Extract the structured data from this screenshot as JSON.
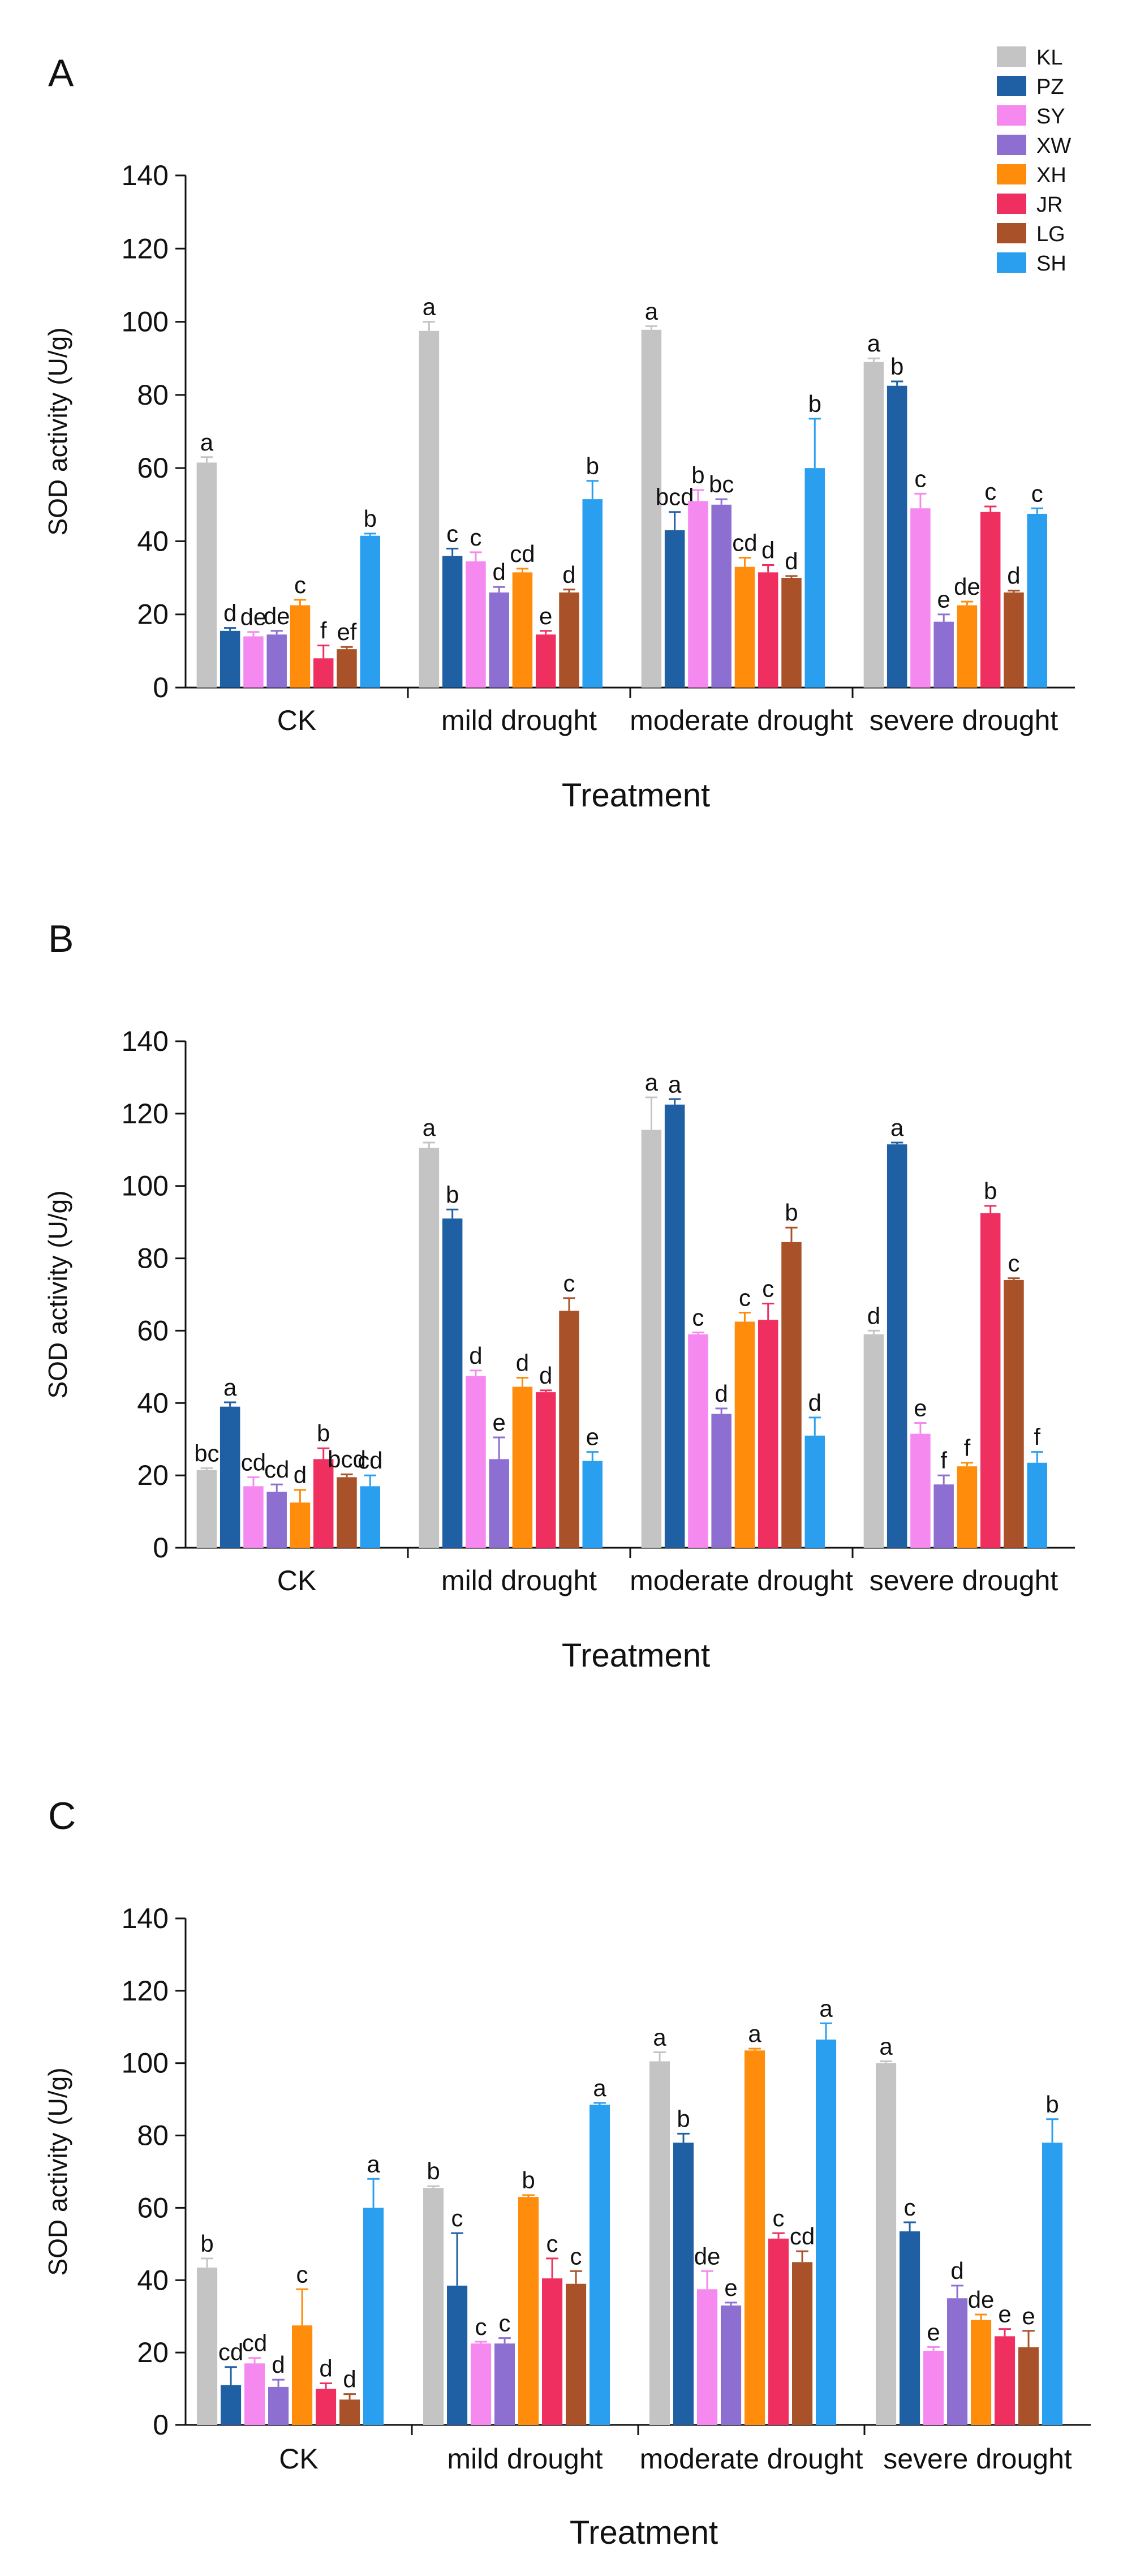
{
  "legend": [
    {
      "name": "KL",
      "color": "#c4c4c4"
    },
    {
      "name": "PZ",
      "color": "#1f5fa3"
    },
    {
      "name": "SY",
      "color": "#f589f0"
    },
    {
      "name": "XW",
      "color": "#8c6fd0"
    },
    {
      "name": "XH",
      "color": "#ff8c0a"
    },
    {
      "name": "JR",
      "color": "#ef2f60"
    },
    {
      "name": "LG",
      "color": "#a9522a"
    },
    {
      "name": "SH",
      "color": "#2a9ff0"
    }
  ],
  "chart_data": [
    {
      "panel": "A",
      "type": "bar",
      "xlabel": "Treatment",
      "ylabel": "SOD activity (U/g)",
      "ylim": [
        0,
        140
      ],
      "yticks": [
        0,
        20,
        40,
        60,
        80,
        100,
        120,
        140
      ],
      "categories": [
        "CK",
        "mild drought",
        "moderate drought",
        "severe drought"
      ],
      "series": [
        {
          "name": "KL",
          "values": [
            61.5,
            97.5,
            97.8,
            89
          ],
          "errors": [
            1.5,
            2.5,
            1.0,
            1.0
          ],
          "letters": [
            "a",
            "a",
            "a",
            "a"
          ]
        },
        {
          "name": "PZ",
          "values": [
            15.5,
            36,
            43,
            82.5
          ],
          "errors": [
            0.8,
            2.0,
            5.0,
            1.2
          ],
          "letters": [
            "d",
            "c",
            "bcd",
            "b"
          ]
        },
        {
          "name": "SY",
          "values": [
            14,
            34.5,
            51,
            49
          ],
          "errors": [
            1.2,
            2.5,
            3.0,
            4.0
          ],
          "letters": [
            "de",
            "c",
            "b",
            "c"
          ]
        },
        {
          "name": "XW",
          "values": [
            14.5,
            26,
            50,
            18
          ],
          "errors": [
            1.0,
            1.5,
            1.5,
            2.0
          ],
          "letters": [
            "de",
            "d",
            "bc",
            "e"
          ]
        },
        {
          "name": "XH",
          "values": [
            22.5,
            31.5,
            33,
            22.5
          ],
          "errors": [
            1.5,
            1.0,
            2.5,
            1.0
          ],
          "letters": [
            "c",
            "cd",
            "cd",
            "de"
          ]
        },
        {
          "name": "JR",
          "values": [
            8,
            14.5,
            31.5,
            48
          ],
          "errors": [
            3.5,
            1.0,
            2.0,
            1.5
          ],
          "letters": [
            "f",
            "e",
            "d",
            "c"
          ]
        },
        {
          "name": "LG",
          "values": [
            10.5,
            26,
            30,
            26
          ],
          "errors": [
            0.6,
            0.8,
            0.5,
            0.5
          ],
          "letters": [
            "ef",
            "d",
            "d",
            "d"
          ]
        },
        {
          "name": "SH",
          "values": [
            41.5,
            51.5,
            60,
            47.5
          ],
          "errors": [
            0.6,
            5.0,
            13.5,
            1.5
          ],
          "letters": [
            "b",
            "b",
            "b",
            "c"
          ]
        }
      ]
    },
    {
      "panel": "B",
      "type": "bar",
      "xlabel": "Treatment",
      "ylabel": "SOD activity (U/g)",
      "ylim": [
        0,
        140
      ],
      "yticks": [
        0,
        20,
        40,
        60,
        80,
        100,
        120,
        140
      ],
      "categories": [
        "CK",
        "mild drought",
        "moderate drought",
        "severe drought"
      ],
      "series": [
        {
          "name": "KL",
          "values": [
            21.5,
            110.5,
            115.5,
            59
          ],
          "errors": [
            0.5,
            1.5,
            9.0,
            1.0
          ],
          "letters": [
            "bc",
            "a",
            "a",
            "d"
          ]
        },
        {
          "name": "PZ",
          "values": [
            39,
            91,
            122.5,
            111.5
          ],
          "errors": [
            1.2,
            2.5,
            1.5,
            0.5
          ],
          "letters": [
            "a",
            "b",
            "a",
            "a"
          ]
        },
        {
          "name": "SY",
          "values": [
            17,
            47.5,
            59,
            31.5
          ],
          "errors": [
            2.5,
            1.5,
            0.5,
            3.0
          ],
          "letters": [
            "cd",
            "d",
            "c",
            "e"
          ]
        },
        {
          "name": "XW",
          "values": [
            15.5,
            24.5,
            37,
            17.5
          ],
          "errors": [
            2.0,
            6.0,
            1.5,
            2.5
          ],
          "letters": [
            "cd",
            "e",
            "d",
            "f"
          ]
        },
        {
          "name": "XH",
          "values": [
            12.5,
            44.5,
            62.5,
            22.5
          ],
          "errors": [
            3.5,
            2.5,
            2.5,
            1.0
          ],
          "letters": [
            "d",
            "d",
            "c",
            "f"
          ]
        },
        {
          "name": "JR",
          "values": [
            24.5,
            43,
            63,
            92.5
          ],
          "errors": [
            3.0,
            0.5,
            4.5,
            2.0
          ],
          "letters": [
            "b",
            "d",
            "c",
            "b"
          ]
        },
        {
          "name": "LG",
          "values": [
            19.5,
            65.5,
            84.5,
            74
          ],
          "errors": [
            0.8,
            3.5,
            4.0,
            0.5
          ],
          "letters": [
            "bcd",
            "c",
            "b",
            "c"
          ]
        },
        {
          "name": "SH",
          "values": [
            17,
            24,
            31,
            23.5
          ],
          "errors": [
            3.0,
            2.5,
            5.0,
            3.0
          ],
          "letters": [
            "cd",
            "e",
            "d",
            "f"
          ]
        }
      ]
    },
    {
      "panel": "C",
      "type": "bar",
      "xlabel": "Treatment",
      "ylabel": "SOD activity (U/g)",
      "ylim": [
        0,
        140
      ],
      "yticks": [
        0,
        20,
        40,
        60,
        80,
        100,
        120,
        140
      ],
      "categories": [
        "CK",
        "mild drought",
        "moderate drought",
        "severe drought"
      ],
      "series": [
        {
          "name": "KL",
          "values": [
            43.5,
            65.5,
            100.5,
            100
          ],
          "errors": [
            2.5,
            0.5,
            2.5,
            0.5
          ],
          "letters": [
            "b",
            "b",
            "a",
            "a"
          ]
        },
        {
          "name": "PZ",
          "values": [
            11,
            38.5,
            78,
            53.5
          ],
          "errors": [
            5.0,
            14.5,
            2.5,
            2.5
          ],
          "letters": [
            "cd",
            "c",
            "b",
            "c"
          ]
        },
        {
          "name": "SY",
          "values": [
            17,
            22.5,
            37.5,
            20.5
          ],
          "errors": [
            1.5,
            0.5,
            5.0,
            1.0
          ],
          "letters": [
            "cd",
            "c",
            "de",
            "e"
          ]
        },
        {
          "name": "XW",
          "values": [
            10.5,
            22.5,
            33,
            35
          ],
          "errors": [
            2.0,
            1.5,
            0.8,
            3.5
          ],
          "letters": [
            "d",
            "c",
            "e",
            "d"
          ]
        },
        {
          "name": "XH",
          "values": [
            27.5,
            63,
            103.5,
            29
          ],
          "errors": [
            10.0,
            0.5,
            0.5,
            1.5
          ],
          "letters": [
            "c",
            "b",
            "a",
            "de"
          ]
        },
        {
          "name": "JR",
          "values": [
            10,
            40.5,
            51.5,
            24.5
          ],
          "errors": [
            1.5,
            5.5,
            1.5,
            2.0
          ],
          "letters": [
            "d",
            "c",
            "c",
            "e"
          ]
        },
        {
          "name": "LG",
          "values": [
            7,
            39,
            45,
            21.5
          ],
          "errors": [
            1.5,
            3.5,
            3.0,
            4.5
          ],
          "letters": [
            "d",
            "c",
            "cd",
            "e"
          ]
        },
        {
          "name": "SH",
          "values": [
            60,
            88.5,
            106.5,
            78
          ],
          "errors": [
            8.0,
            0.5,
            4.5,
            6.5
          ],
          "letters": [
            "a",
            "a",
            "a",
            "b"
          ]
        }
      ]
    }
  ]
}
